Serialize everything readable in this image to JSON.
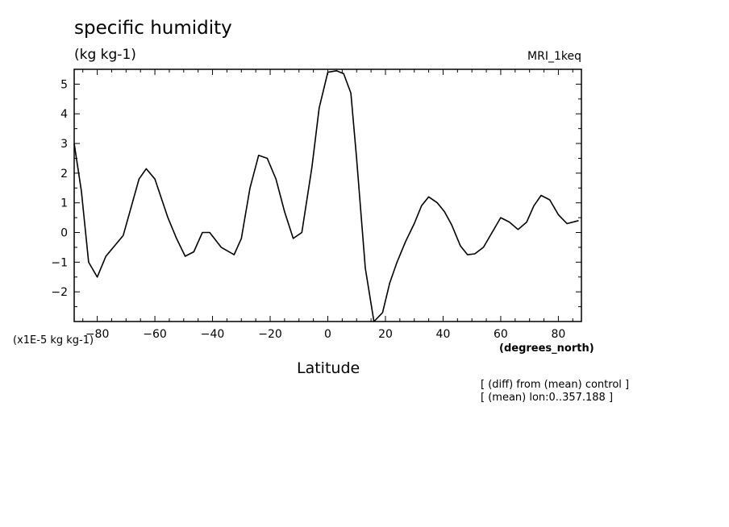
{
  "chart_data": {
    "type": "line",
    "title": "specific humidity",
    "units_label": "(kg kg-1)",
    "model_label": "MRI_1keq",
    "scale_label": "(x1E-5 kg kg-1)",
    "xlabel": "Latitude",
    "x_units": "(degrees_north)",
    "annotations": [
      "[ (diff) from (mean) control ]",
      "[ (mean) lon:0..357.188 ]"
    ],
    "xlim": [
      -88,
      88
    ],
    "ylim": [
      -3,
      5.5
    ],
    "x_ticks": [
      -80,
      -60,
      -40,
      -20,
      0,
      20,
      40,
      60,
      80
    ],
    "y_ticks": [
      -2,
      -1,
      0,
      1,
      2,
      3,
      4,
      5
    ],
    "series": [
      {
        "name": "specific humidity diff",
        "x": [
          -88,
          -85.5,
          -83,
          -80,
          -77,
          -71,
          -65.5,
          -63,
          -60,
          -55.5,
          -52.5,
          -49.5,
          -46.5,
          -43.5,
          -41,
          -37,
          -32.5,
          -30,
          -27,
          -24,
          -21,
          -18,
          -15,
          -12,
          -9,
          -5.5,
          -3,
          0,
          3,
          5.5,
          8,
          10,
          13,
          16,
          19,
          21.5,
          24,
          27,
          30,
          32.5,
          35,
          38,
          40.5,
          43,
          46,
          48.5,
          51,
          54,
          57,
          60,
          63,
          66,
          69,
          71.5,
          74,
          77,
          80,
          83,
          87
        ],
        "y": [
          3.0,
          1.4,
          -1.0,
          -1.5,
          -0.8,
          -0.1,
          1.8,
          2.15,
          1.8,
          0.5,
          -0.2,
          -0.8,
          -0.65,
          0.0,
          0.0,
          -0.5,
          -0.75,
          -0.2,
          1.5,
          2.6,
          2.5,
          1.8,
          0.7,
          -0.2,
          0.0,
          2.2,
          4.2,
          5.4,
          5.45,
          5.35,
          4.7,
          2.5,
          -1.2,
          -3.0,
          -2.7,
          -1.7,
          -1.0,
          -0.3,
          0.3,
          0.9,
          1.2,
          1.0,
          0.7,
          0.25,
          -0.45,
          -0.75,
          -0.72,
          -0.5,
          0.0,
          0.5,
          0.35,
          0.1,
          0.35,
          0.9,
          1.25,
          1.1,
          0.6,
          0.3,
          0.4
        ]
      }
    ]
  }
}
